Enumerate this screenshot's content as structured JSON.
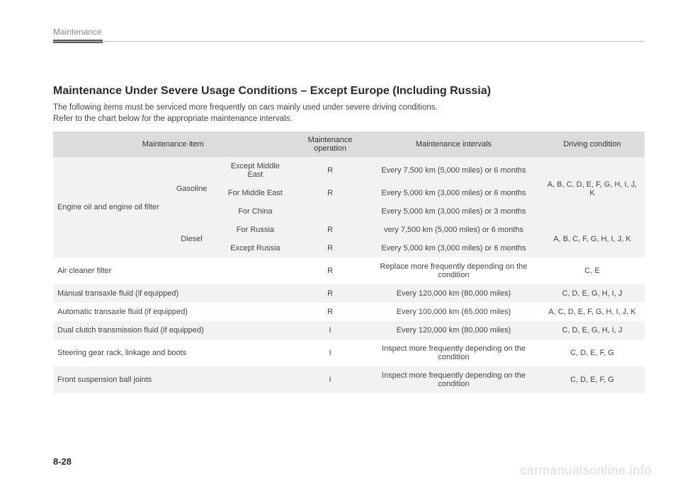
{
  "header": {
    "section": "Maintenance"
  },
  "title": "Maintenance Under Severe Usage Conditions – Except Europe (Including Russia)",
  "intro_line1": "The following items must be serviced more frequently on cars mainly used under severe driving conditions.",
  "intro_line2": "Refer to the chart below for the appropriate maintenance intervals.",
  "columns": {
    "c1": "Maintenance item",
    "c2": "Maintenance operation",
    "c3": "Maintenance intervals",
    "c4": "Driving condition"
  },
  "rows": {
    "engine_item": "Engine oil and engine oil filter",
    "gasoline": "Gasoline",
    "diesel": "Diesel",
    "g1_region": "Except Middle East",
    "g1_op": "R",
    "g1_int": "Every 7,500 km (5,000 miles) or 6 months",
    "g_cond": "A, B, C, D, E, F, G, H, I, J, K",
    "g2_region": "For Middle East",
    "g2_op": "R",
    "g2_int": "Every 5,000 km (3,000 miles) or 6 months",
    "g3_region": "For China",
    "g3_op": "",
    "g3_int": "Every 5,000 km (3,000 miles) or 3 months",
    "d1_region": "For Russia",
    "d1_op": "R",
    "d1_int": "very 7,500 km (5,000 miles) or 6 months",
    "d_cond": "A, B, C, F, G, H, I, J, K",
    "d2_region": "Except Russia",
    "d2_op": "R",
    "d2_int": "Every 5,000 km (3,000 miles) or 6 months",
    "air_item": "Air cleaner filter",
    "air_op": "R",
    "air_int": "Replace more frequently depending on the condition",
    "air_cond": "C, E",
    "man_item": "Manual transaxle fluid (if equipped)",
    "man_op": "R",
    "man_int": "Every 120,000 km (80,000 miles)",
    "man_cond": "C, D, E, G, H, I, J",
    "auto_item": "Automatic transaxle fluid (if equipped)",
    "auto_op": "R",
    "auto_int": "Every 100,000 km (65,000 miles)",
    "auto_cond": "A, C, D, E, F, G, H, I, J, K",
    "dual_item": "Dual clutch transmission fluid (if equipped)",
    "dual_op": "I",
    "dual_int": "Every 120,000 km (80,000 miles)",
    "dual_cond": "C, D, E, G, H, I, J",
    "steer_item": "Steering gear rack, linkage and boots",
    "steer_op": "I",
    "steer_int": "Inspect more frequently depending on the condition",
    "steer_cond": "C, D, E, F, G",
    "ball_item": "Front suspension ball joints",
    "ball_op": "I",
    "ball_int": "Inspect more frequently depending on the condition",
    "ball_cond": "C, D, E, F, G"
  },
  "page_number": "8-28",
  "watermark": "carmanualsonline.info",
  "style": {
    "header_color": "#888",
    "bar_color": "#5a5a5a",
    "line_color": "#bbb",
    "title_color": "#2a2a2a",
    "text_color": "#444",
    "thead_bg": "#dcdcdc",
    "row_alt_bg": "#f2f2f2",
    "row_bg": "#ffffff",
    "watermark_color": "#ddd",
    "font_body": 11.5,
    "font_table": 11,
    "font_title": 16
  }
}
